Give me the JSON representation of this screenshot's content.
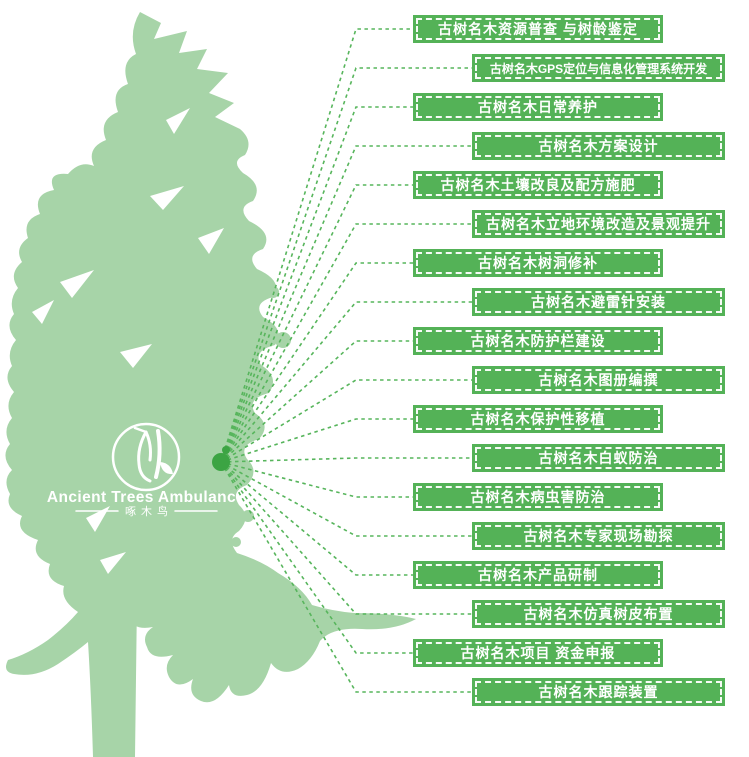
{
  "colors": {
    "tree_silhouette": "#a7d4a8",
    "banner_green": "#54b257",
    "connector_line_green": "#57b55c",
    "hub_dot_green": "#3ca443",
    "label_text": "#ffffff"
  },
  "logo": {
    "icon": "woodpecker-icon",
    "title": "Ancient Trees Ambulance",
    "subtitle": "啄木鸟"
  },
  "banners": [
    {
      "label": "古树名木资源普查 与树龄鉴定"
    },
    {
      "label": "古树名木GPS定位与信息化管理系统开发"
    },
    {
      "label": "古树名木日常养护"
    },
    {
      "label": "古树名木方案设计"
    },
    {
      "label": "古树名木土壤改良及配方施肥"
    },
    {
      "label": "古树名木立地环境改造及景观提升"
    },
    {
      "label": "古树名木树洞修补"
    },
    {
      "label": "古树名木避雷针安装"
    },
    {
      "label": "古树名木防护栏建设"
    },
    {
      "label": "古树名木图册编撰"
    },
    {
      "label": "古树名木保护性移植"
    },
    {
      "label": "古树名木白蚁防治"
    },
    {
      "label": "古树名木病虫害防治"
    },
    {
      "label": "古树名木专家现场勘探"
    },
    {
      "label": "古树名木产品研制"
    },
    {
      "label": "古树名木仿真树皮布置"
    },
    {
      "label": "古树名木项目 资金申报"
    },
    {
      "label": "古树名木跟踪装置"
    }
  ]
}
